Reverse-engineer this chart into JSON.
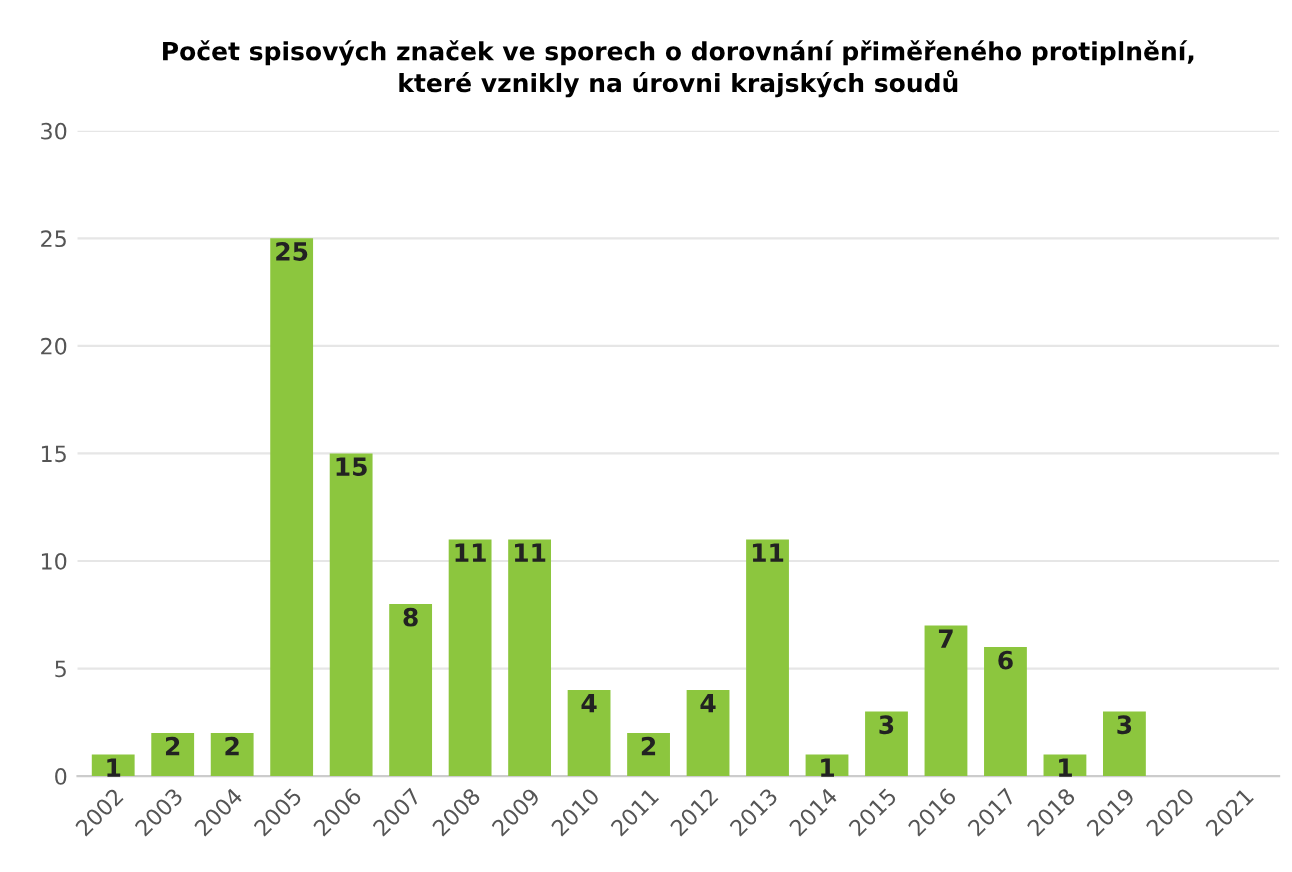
{
  "chart_data": {
    "type": "bar",
    "title": "Počet spisových značek ve sporech o dorovnání přiměřeného protiplnění,\nkteré vznikly na úrovni krajských soudů",
    "categories": [
      "2002",
      "2003",
      "2004",
      "2005",
      "2006",
      "2007",
      "2008",
      "2009",
      "2010",
      "2011",
      "2012",
      "2013",
      "2014",
      "2015",
      "2016",
      "2017",
      "2018",
      "2019",
      "2020",
      "2021"
    ],
    "values": [
      1,
      2,
      2,
      25,
      15,
      8,
      11,
      11,
      4,
      2,
      4,
      11,
      1,
      3,
      7,
      6,
      1,
      3,
      null,
      null
    ],
    "color": "#8cc63e",
    "data_labels": true,
    "ylim": [
      0,
      30
    ],
    "yticks": [
      0,
      5,
      10,
      15,
      20,
      25,
      30
    ],
    "grid": "y",
    "legend": false
  }
}
